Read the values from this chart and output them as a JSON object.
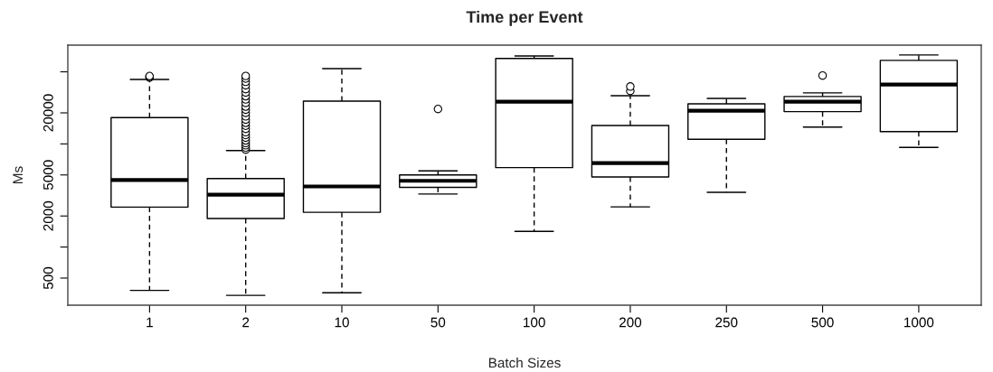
{
  "chart_data": {
    "type": "box",
    "title": "Time per Event",
    "xlabel": "Batch Sizes",
    "ylabel": "Ms",
    "categories": [
      "1",
      "2",
      "10",
      "50",
      "100",
      "200",
      "250",
      "500",
      "1000"
    ],
    "boxes": [
      {
        "low": 380,
        "q1": 2440,
        "median": 4460,
        "q3": 18000,
        "high": 42200,
        "outliers": [
          44000,
          44800,
          45500
        ]
      },
      {
        "low": 340,
        "q1": 1890,
        "median": 3220,
        "q3": 4620,
        "high": 8630,
        "outliers": [
          8800,
          9200,
          9700,
          10200,
          10800,
          11500,
          12200,
          13000,
          14000,
          15000,
          16000,
          17200,
          18500,
          20000,
          21500,
          23000,
          25000,
          27000,
          29000,
          31500,
          34000,
          37000,
          40000,
          43000,
          45600
        ]
      },
      {
        "low": 360,
        "q1": 2170,
        "median": 3870,
        "q3": 26000,
        "high": 53700
      },
      {
        "low": 3270,
        "q1": 3790,
        "median": 4390,
        "q3": 5000,
        "high": 5470,
        "outliers": [
          21800
        ]
      },
      {
        "low": 1420,
        "q1": 5890,
        "median": 25700,
        "q3": 67300,
        "high": 71300
      },
      {
        "low": 2450,
        "q1": 4780,
        "median": 6520,
        "q3": 15100,
        "high": 29300,
        "outliers": [
          32600,
          36000
        ]
      },
      {
        "low": 3390,
        "q1": 11090,
        "median": 21000,
        "q3": 24450,
        "high": 27600
      },
      {
        "low": 14550,
        "q1": 20560,
        "median": 25700,
        "q3": 28800,
        "high": 31250,
        "outliers": [
          46000
        ]
      },
      {
        "low": 9260,
        "q1": 13180,
        "median": 37600,
        "q3": 64500,
        "high": 72800
      }
    ],
    "log": true,
    "ylim": [
      273,
      90700
    ],
    "yticks": [
      500,
      {
        "value": 1000,
        "label": null
      },
      2000,
      5000,
      {
        "value": 10000,
        "label": null
      },
      20000,
      {
        "value": 50000,
        "label": null
      }
    ]
  }
}
